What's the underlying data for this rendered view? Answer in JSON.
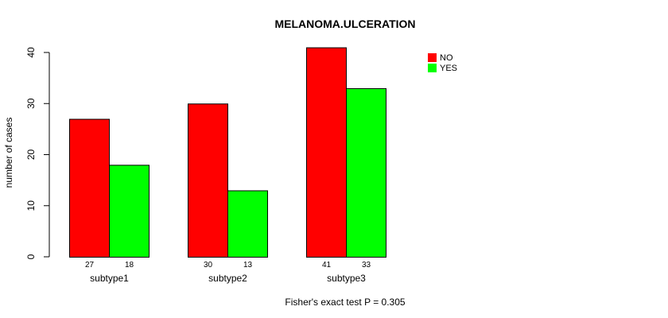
{
  "chart_data": {
    "type": "bar",
    "title": "MELANOMA.ULCERATION",
    "ylabel": "number of cases",
    "xlabel": "",
    "ylim": [
      0,
      40
    ],
    "yticks": [
      0,
      10,
      20,
      30,
      40
    ],
    "categories": [
      "subtype1",
      "subtype2",
      "subtype3"
    ],
    "series": [
      {
        "name": "NO",
        "color": "#ff0000",
        "values": [
          27,
          30,
          41
        ]
      },
      {
        "name": "YES",
        "color": "#00ff00",
        "values": [
          18,
          13,
          33
        ]
      }
    ],
    "legend_position": "top-right",
    "footnote": "Fisher's exact test P = 0.305"
  }
}
